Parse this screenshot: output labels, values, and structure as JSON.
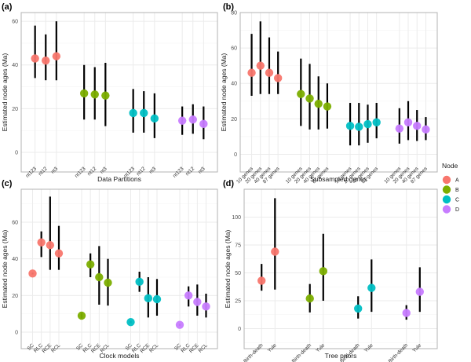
{
  "figure": {
    "legend": {
      "title": "Node",
      "placement": "right",
      "entries": [
        {
          "label": "A",
          "color": "#F8766D"
        },
        {
          "label": "B",
          "color": "#7CAE00"
        },
        {
          "label": "C",
          "color": "#00BFC4"
        },
        {
          "label": "D",
          "color": "#C77CFF"
        }
      ]
    }
  },
  "chart_data": [
    {
      "panel": "(a)",
      "type": "scatter",
      "subtype": "point-with-errorbar",
      "xlabel": "Data Partitions",
      "ylabel": "Estimated node ages (Ma)",
      "yticks": [
        0,
        20,
        40,
        60
      ],
      "ylim": [
        -9,
        64
      ],
      "grid": true,
      "groups": [
        {
          "node": "A",
          "points": [
            {
              "label": "nt123",
              "value": 43,
              "low": 34,
              "high": 58
            },
            {
              "label": "nt12",
              "value": 42,
              "low": 33,
              "high": 54
            },
            {
              "label": "nt3",
              "value": 44,
              "low": 33,
              "high": 60
            }
          ]
        },
        {
          "node": "B",
          "points": [
            {
              "label": "nt123",
              "value": 27,
              "low": 15,
              "high": 40
            },
            {
              "label": "nt12",
              "value": 26.5,
              "low": 15,
              "high": 39
            },
            {
              "label": "nt3",
              "value": 26,
              "low": 12,
              "high": 41
            }
          ]
        },
        {
          "node": "C",
          "points": [
            {
              "label": "nt123",
              "value": 18,
              "low": 9,
              "high": 29
            },
            {
              "label": "nt12",
              "value": 18,
              "low": 9,
              "high": 28
            },
            {
              "label": "nt3",
              "value": 15.5,
              "low": 6.5,
              "high": 27
            }
          ]
        },
        {
          "node": "D",
          "points": [
            {
              "label": "nt123",
              "value": 14.5,
              "low": 8,
              "high": 21
            },
            {
              "label": "nt12",
              "value": 15,
              "low": 8.5,
              "high": 22
            },
            {
              "label": "nt3",
              "value": 13,
              "low": 6,
              "high": 21
            }
          ]
        }
      ]
    },
    {
      "panel": "(b)",
      "type": "scatter",
      "subtype": "point-with-errorbar",
      "xlabel": "Subsampled genes",
      "ylabel": "Estimated node ages (Ma)",
      "yticks": [
        0,
        20,
        40,
        60,
        80
      ],
      "ylim": [
        -10,
        80
      ],
      "grid": true,
      "groups": [
        {
          "node": "A",
          "points": [
            {
              "label": "10 genes",
              "value": 46,
              "low": 33,
              "high": 68
            },
            {
              "label": "20 genes",
              "value": 50,
              "low": 34,
              "high": 75
            },
            {
              "label": "40 genes",
              "value": 46,
              "low": 34,
              "high": 66
            },
            {
              "label": "87 genes",
              "value": 43,
              "low": 34,
              "high": 58
            }
          ]
        },
        {
          "node": "B",
          "points": [
            {
              "label": "10 genes",
              "value": 34,
              "low": 16,
              "high": 54
            },
            {
              "label": "20 genes",
              "value": 31.5,
              "low": 14,
              "high": 51
            },
            {
              "label": "40 genes",
              "value": 28.5,
              "low": 14,
              "high": 44
            },
            {
              "label": "87 genes",
              "value": 27,
              "low": 14.5,
              "high": 40
            }
          ]
        },
        {
          "node": "C",
          "points": [
            {
              "label": "10 genes",
              "value": 16,
              "low": 5,
              "high": 29
            },
            {
              "label": "20 genes",
              "value": 15.5,
              "low": 5,
              "high": 29
            },
            {
              "label": "40 genes",
              "value": 17,
              "low": 6.5,
              "high": 28
            },
            {
              "label": "87 genes",
              "value": 18,
              "low": 9,
              "high": 29
            }
          ]
        },
        {
          "node": "D",
          "points": [
            {
              "label": "10 genes",
              "value": 14.5,
              "low": 6,
              "high": 26
            },
            {
              "label": "20 genes",
              "value": 18,
              "low": 8,
              "high": 30
            },
            {
              "label": "40 genes",
              "value": 16,
              "low": 7.5,
              "high": 25
            },
            {
              "label": "87 genes",
              "value": 14,
              "low": 8,
              "high": 21
            }
          ]
        }
      ]
    },
    {
      "panel": "(c)",
      "type": "scatter",
      "subtype": "point-with-errorbar",
      "xlabel": "Clock models",
      "ylabel": "Estimated node ages (Ma)",
      "yticks": [
        0,
        20,
        40,
        60
      ],
      "ylim": [
        -9,
        78
      ],
      "grid": true,
      "groups": [
        {
          "node": "A",
          "points": [
            {
              "label": "SC",
              "value": 32,
              "low": 31.5,
              "high": 32.5
            },
            {
              "label": "RLC",
              "value": 49,
              "low": 41,
              "high": 55
            },
            {
              "label": "RCE",
              "value": 47.5,
              "low": 34,
              "high": 74
            },
            {
              "label": "RCL",
              "value": 43,
              "low": 34,
              "high": 58
            }
          ]
        },
        {
          "node": "B",
          "points": [
            {
              "label": "SC",
              "value": 9,
              "low": 7.5,
              "high": 10.5
            },
            {
              "label": "RLC",
              "value": 37,
              "low": 30,
              "high": 43
            },
            {
              "label": "RCE",
              "value": 30,
              "low": 15,
              "high": 47
            },
            {
              "label": "RCL",
              "value": 27,
              "low": 14.5,
              "high": 40
            }
          ]
        },
        {
          "node": "C",
          "points": [
            {
              "label": "SC",
              "value": 5.5,
              "low": 4.8,
              "high": 6.2
            },
            {
              "label": "RLC",
              "value": 27.5,
              "low": 22,
              "high": 33
            },
            {
              "label": "RCE",
              "value": 18.5,
              "low": 8,
              "high": 30
            },
            {
              "label": "RCL",
              "value": 18,
              "low": 9,
              "high": 29
            }
          ]
        },
        {
          "node": "D",
          "points": [
            {
              "label": "SC",
              "value": 4,
              "low": 3.5,
              "high": 4.5
            },
            {
              "label": "RLC",
              "value": 20,
              "low": 14,
              "high": 25
            },
            {
              "label": "RCE",
              "value": 16.5,
              "low": 9,
              "high": 26
            },
            {
              "label": "RCL",
              "value": 14,
              "low": 8,
              "high": 21
            }
          ]
        }
      ]
    },
    {
      "panel": "(d)",
      "type": "scatter",
      "subtype": "point-with-errorbar",
      "xlabel": "Tree priors",
      "ylabel": "Estimated node ages (Ma)",
      "yticks": [
        0,
        25,
        50,
        75,
        100
      ],
      "ylim": [
        -18,
        125
      ],
      "grid": true,
      "groups": [
        {
          "node": "A",
          "points": [
            {
              "label": "Birth-death",
              "value": 43,
              "low": 34,
              "high": 58
            },
            {
              "label": "Yule",
              "value": 69,
              "low": 35,
              "high": 117
            }
          ]
        },
        {
          "node": "B",
          "points": [
            {
              "label": "Birth-death",
              "value": 27,
              "low": 14.5,
              "high": 40
            },
            {
              "label": "Yule",
              "value": 51.5,
              "low": 25,
              "high": 85
            }
          ]
        },
        {
          "node": "C",
          "points": [
            {
              "label": "Birth-death",
              "value": 18,
              "low": 9,
              "high": 29
            },
            {
              "label": "Yule",
              "value": 36.5,
              "low": 15,
              "high": 62
            }
          ]
        },
        {
          "node": "D",
          "points": [
            {
              "label": "Birth-death",
              "value": 14,
              "low": 8,
              "high": 21
            },
            {
              "label": "Yule",
              "value": 33,
              "low": 15,
              "high": 55
            }
          ]
        }
      ]
    }
  ]
}
